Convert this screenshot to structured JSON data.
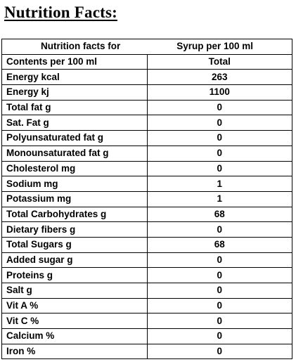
{
  "page": {
    "title": "Nutrition Facts:"
  },
  "table": {
    "header_prefix": "Nutrition facts for",
    "header_suffix": "Syrup per 100 ml",
    "col_label": "Contents per 100 ml",
    "col_value": "Total",
    "rows": [
      {
        "label": "Energy kcal",
        "value": "263"
      },
      {
        "label": "Energy kj",
        "value": "1100"
      },
      {
        "label": "Total fat g",
        "value": "0"
      },
      {
        "label": "Sat. Fat g",
        "value": "0"
      },
      {
        "label": "Polyunsaturated fat g",
        "value": "0"
      },
      {
        "label": "Monounsaturated fat g",
        "value": "0"
      },
      {
        "label": "Cholesterol mg",
        "value": "0"
      },
      {
        "label": "Sodium mg",
        "value": "1"
      },
      {
        "label": "Potassium mg",
        "value": "1"
      },
      {
        "label": "Total Carbohydrates g",
        "value": "68"
      },
      {
        "label": "Dietary fibers g",
        "value": "0"
      },
      {
        "label": "Total Sugars g",
        "value": "68"
      },
      {
        "label": "Added sugar g",
        "value": "0"
      },
      {
        "label": "Proteins g",
        "value": "0"
      },
      {
        "label": "Salt g",
        "value": "0"
      },
      {
        "label": "Vit A %",
        "value": "0"
      },
      {
        "label": "Vit C %",
        "value": "0"
      },
      {
        "label": "Calcium %",
        "value": "0"
      },
      {
        "label": "Iron %",
        "value": "0"
      }
    ]
  }
}
